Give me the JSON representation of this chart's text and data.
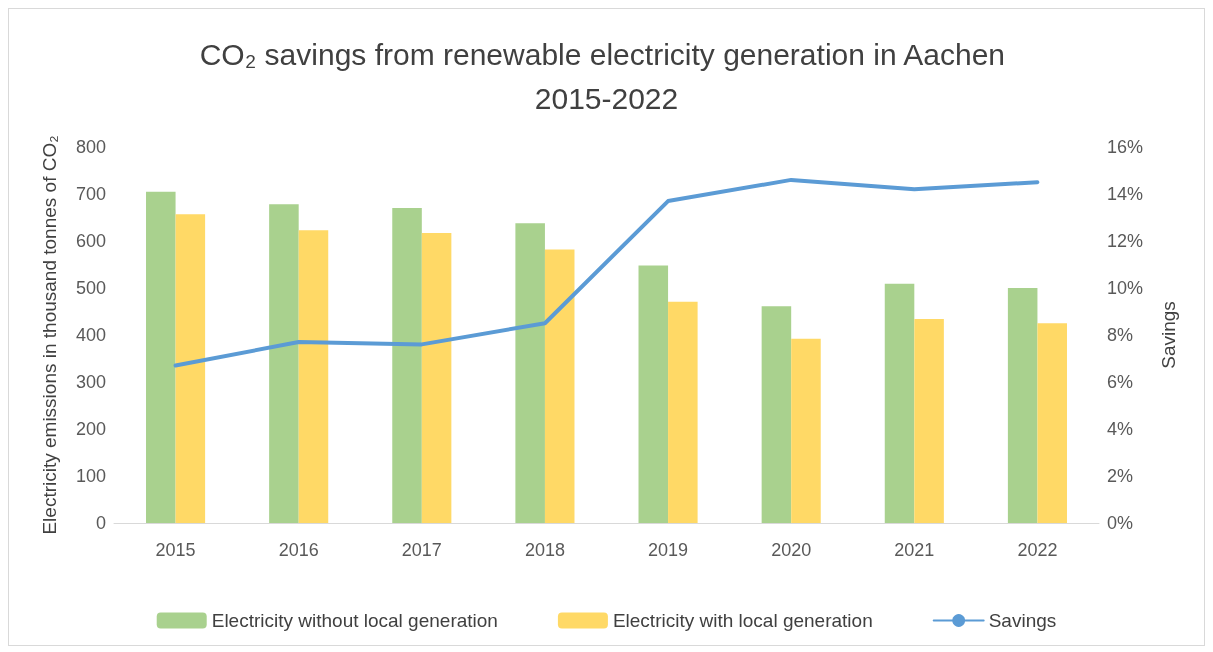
{
  "chart_data": {
    "type": "bar",
    "title": "CO₂ savings from renewable electricity generation in Aachen 2015-2022",
    "ylabel": "Electricity emissions in thousand tonnes of CO₂",
    "y2label": "Savings",
    "categories": [
      "2015",
      "2016",
      "2017",
      "2018",
      "2019",
      "2020",
      "2021",
      "2022"
    ],
    "series": [
      {
        "name": "Electricity without local generation",
        "color": "#a9d18e",
        "values": [
          705,
          678,
          670,
          638,
          548,
          461,
          509,
          500
        ]
      },
      {
        "name": "Electricity with local generation",
        "color": "#ffd966",
        "values": [
          657,
          623,
          617,
          582,
          471,
          392,
          434,
          425
        ]
      },
      {
        "name": "Savings",
        "type": "line",
        "axis": "y2",
        "color": "#5b9bd5",
        "values": [
          6.7,
          7.7,
          7.6,
          8.5,
          13.7,
          14.6,
          14.2,
          14.5
        ]
      }
    ],
    "ylim": [
      0,
      800
    ],
    "yticks": [
      0,
      100,
      200,
      300,
      400,
      500,
      600,
      700,
      800
    ],
    "y2lim": [
      0,
      16
    ],
    "y2ticks": [
      {
        "value": 0,
        "label": "0%"
      },
      {
        "value": 2,
        "label": "2%"
      },
      {
        "value": 4,
        "label": "4%"
      },
      {
        "value": 6,
        "label": "6%"
      },
      {
        "value": 8,
        "label": "8%"
      },
      {
        "value": 10,
        "label": "10%"
      },
      {
        "value": 12,
        "label": "12%"
      },
      {
        "value": 14,
        "label": "14%"
      },
      {
        "value": 16,
        "label": "16%"
      }
    ],
    "grid": false,
    "legend": "bottom",
    "marker": "none",
    "line_style": "solid"
  }
}
